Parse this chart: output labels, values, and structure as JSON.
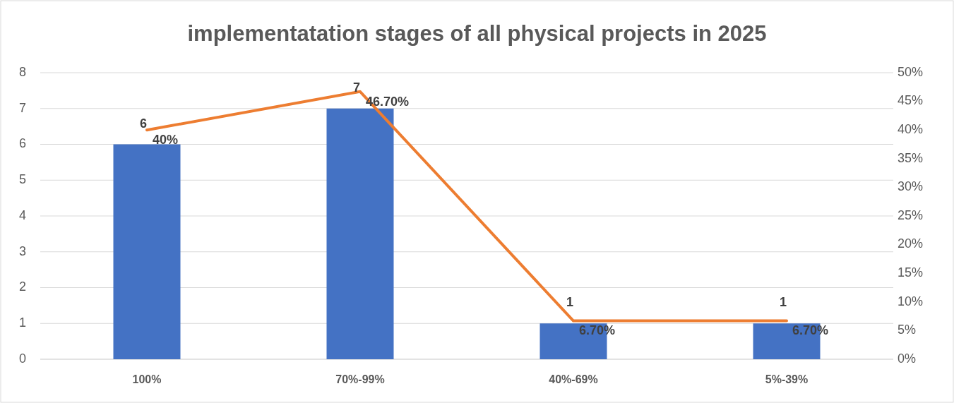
{
  "chart_data": {
    "type": "bar",
    "title": "implementatation stages of all physical projects in 2025",
    "categories": [
      "100%",
      "70%-99%",
      "40%-69%",
      "5%-39%"
    ],
    "series": [
      {
        "color": "#4472c4",
        "values": [
          6,
          7,
          1,
          1
        ],
        "value_labels": [
          "6",
          "7",
          "1",
          "1"
        ]
      },
      {
        "type": "line",
        "axis": "y2",
        "color": "#ed7d31",
        "values": [
          40,
          46.7,
          6.7,
          6.7
        ],
        "value_labels": [
          "40%",
          "46.70%",
          "6.70%",
          "6.70%"
        ]
      }
    ],
    "ylim": [
      0,
      8
    ],
    "yticks": [
      0,
      1,
      2,
      3,
      4,
      5,
      6,
      7,
      8
    ],
    "y2lim": [
      0,
      50
    ],
    "y2ticks": [
      {
        "value": 0,
        "label": "0%"
      },
      {
        "value": 5,
        "label": "5%"
      },
      {
        "value": 10,
        "label": "10%"
      },
      {
        "value": 15,
        "label": "15%"
      },
      {
        "value": 20,
        "label": "20%"
      },
      {
        "value": 25,
        "label": "25%"
      },
      {
        "value": 30,
        "label": "30%"
      },
      {
        "value": 35,
        "label": "35%"
      },
      {
        "value": 40,
        "label": "40%"
      },
      {
        "value": 45,
        "label": "45%"
      },
      {
        "value": 50,
        "label": "50%"
      }
    ],
    "grid": "y",
    "marker": "none",
    "line_style": "solid"
  }
}
